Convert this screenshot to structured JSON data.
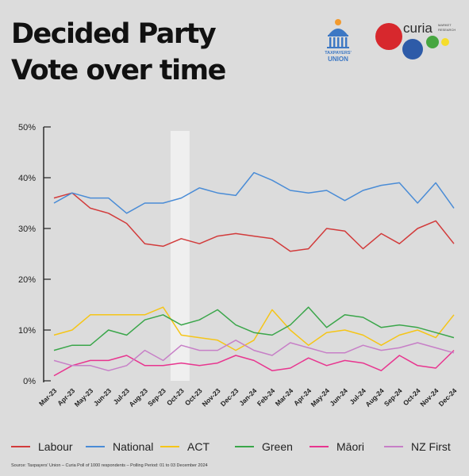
{
  "header": {
    "title_line1": "Decided Party",
    "title_line2": "Vote over time"
  },
  "logos": {
    "taxpayers_union_line1": "TAXPAYERS'",
    "taxpayers_union_line2": "UNION",
    "curia_name": "curia",
    "curia_tag_line1": "MARKET",
    "curia_tag_line2": "RESEARCH"
  },
  "source": "Source: Taxpayers' Union – Curia Poll of 1000 respondents – Polling Period: 01 to 03 December 2024",
  "chart_data": {
    "type": "line",
    "ylim": [
      0,
      50
    ],
    "yticks": [
      "0%",
      "10%",
      "20%",
      "30%",
      "40%",
      "50%"
    ],
    "ytick_values": [
      0,
      10,
      20,
      30,
      40,
      50
    ],
    "categories": [
      "Mar-23",
      "Apr-23",
      "May-23",
      "Jun-23",
      "Jul-23",
      "Aug-23",
      "Sep-23",
      "Oct-23",
      "Oct-23",
      "Nov-23",
      "Dec-23",
      "Jan-24",
      "Feb-24",
      "Mar-24",
      "Apr-24",
      "May-24",
      "Jun-24",
      "Jul-24",
      "Aug-24",
      "Sep-24",
      "Oct-24",
      "Nov-24",
      "Dec-24"
    ],
    "highlight_category": "Oct-23",
    "highlight_index": 7,
    "grid": false,
    "legend_position": "bottom",
    "series": [
      {
        "name": "Labour",
        "color": "#d23b3b",
        "values": [
          36,
          37,
          34,
          33,
          31,
          27,
          26.5,
          28,
          27,
          28.5,
          29,
          28.5,
          28,
          25.5,
          26,
          30,
          29.5,
          26,
          29,
          27,
          30,
          31.5,
          27
        ]
      },
      {
        "name": "National",
        "color": "#4a8cd6",
        "values": [
          35,
          37,
          36,
          36,
          33,
          35,
          35,
          36,
          38,
          37,
          36.5,
          41,
          39.5,
          37.5,
          37,
          37.5,
          35.5,
          37.5,
          38.5,
          39,
          35,
          39,
          34
        ]
      },
      {
        "name": "ACT",
        "color": "#f5c518",
        "values": [
          9,
          10,
          13,
          13,
          13,
          13,
          14.5,
          9,
          8.5,
          8,
          6,
          8,
          14,
          10,
          7,
          9.5,
          10,
          9,
          7,
          9,
          10,
          8.5,
          13
        ]
      },
      {
        "name": "Green",
        "color": "#3aa64a",
        "values": [
          6,
          7,
          7,
          10,
          9,
          12,
          13,
          11,
          12,
          14,
          11,
          9.5,
          9,
          11,
          14.5,
          10.5,
          13,
          12.5,
          10.5,
          11,
          10.5,
          9.5,
          8.5
        ]
      },
      {
        "name": "Māori",
        "color": "#e8358f",
        "values": [
          1,
          3,
          4,
          4,
          5,
          3,
          3,
          3.5,
          3,
          3.5,
          5,
          4,
          2,
          2.5,
          4.5,
          3,
          4,
          3.5,
          2,
          5,
          3,
          2.5,
          6
        ]
      },
      {
        "name": "NZ First",
        "color": "#c77fc7",
        "values": [
          4,
          3,
          3,
          2,
          3,
          6,
          4,
          7,
          6,
          6,
          8,
          6,
          5,
          7.5,
          6.5,
          5.5,
          5.5,
          7,
          6,
          6.5,
          7.5,
          6.5,
          5.5
        ]
      }
    ]
  }
}
